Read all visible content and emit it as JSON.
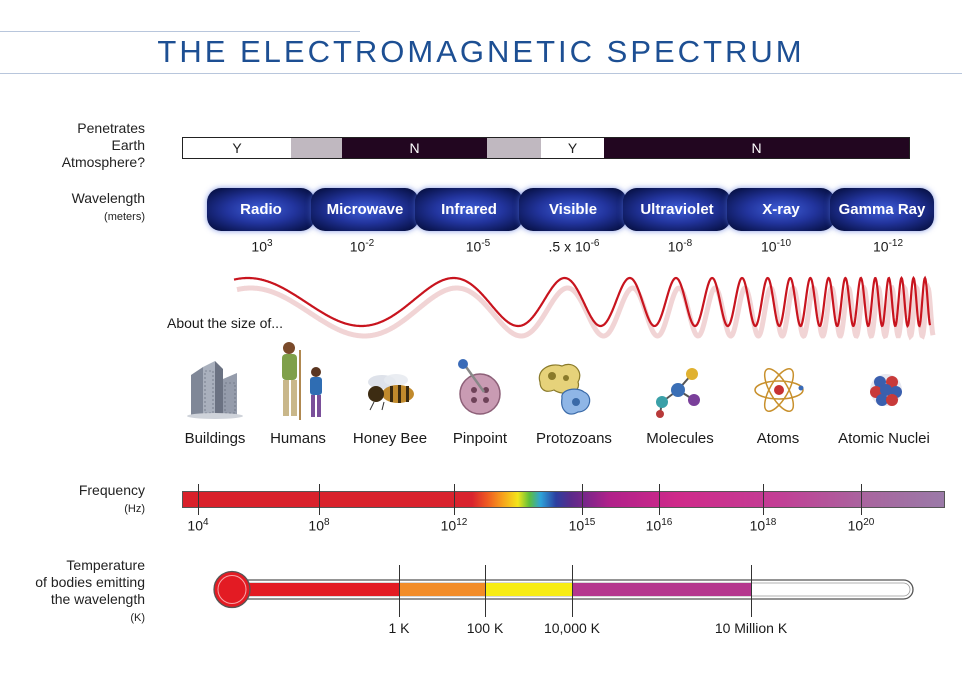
{
  "title": "THE ELECTROMAGNETIC SPECTRUM",
  "labels": {
    "penetrates_1": "Penetrates",
    "penetrates_2": "Earth",
    "penetrates_3": "Atmosphere?",
    "wavelength": "Wavelength",
    "wavelength_unit": "(meters)",
    "about_size": "About the size of...",
    "frequency": "Frequency",
    "frequency_unit": "(Hz)",
    "temperature_1": "Temperature",
    "temperature_2": "of bodies emitting",
    "temperature_3": "the wavelength",
    "temperature_unit": "(K)"
  },
  "penetration": [
    {
      "text": "Y",
      "color": "#ffffff",
      "text_color": "#222222"
    },
    {
      "text": "",
      "color": "#c0b8c0",
      "text_color": "#222222"
    },
    {
      "text": "N",
      "color": "#220620",
      "text_color": "#ffffff"
    },
    {
      "text": "",
      "color": "#c0b8c0",
      "text_color": "#222222"
    },
    {
      "text": "Y",
      "color": "#ffffff",
      "text_color": "#222222"
    },
    {
      "text": "N",
      "color": "#220620",
      "text_color": "#ffffff"
    }
  ],
  "bands": [
    {
      "name": "Radio",
      "wl_base": "10",
      "wl_exp": "3"
    },
    {
      "name": "Microwave",
      "wl_base": "10",
      "wl_exp": "-2"
    },
    {
      "name": "Infrared",
      "wl_base": "10",
      "wl_exp": "-5"
    },
    {
      "name": "Visible",
      "wl_base": ".5 x 10",
      "wl_exp": "-6"
    },
    {
      "name": "Ultraviolet",
      "wl_base": "10",
      "wl_exp": "-8"
    },
    {
      "name": "X-ray",
      "wl_base": "10",
      "wl_exp": "-10"
    },
    {
      "name": "Gamma Ray",
      "wl_base": "10",
      "wl_exp": "-12"
    }
  ],
  "objects": [
    "Buildings",
    "Humans",
    "Honey Bee",
    "Pinpoint",
    "Protozoans",
    "Molecules",
    "Atoms",
    "Atomic Nuclei"
  ],
  "frequency_ticks": [
    {
      "base": "10",
      "exp": "4"
    },
    {
      "base": "10",
      "exp": "8"
    },
    {
      "base": "10",
      "exp": "12"
    },
    {
      "base": "10",
      "exp": "15"
    },
    {
      "base": "10",
      "exp": "16"
    },
    {
      "base": "10",
      "exp": "18"
    },
    {
      "base": "10",
      "exp": "20"
    }
  ],
  "temperature_ticks": [
    "1 K",
    "100 K",
    "10,000 K",
    "10 Million K"
  ],
  "colors": {
    "title": "#1d4f93",
    "wave": "#c8141e",
    "thermo_red": "#e31b23",
    "thermo_orange": "#f28c28",
    "thermo_yellow": "#f7ec13",
    "thermo_purple": "#b5378e"
  }
}
